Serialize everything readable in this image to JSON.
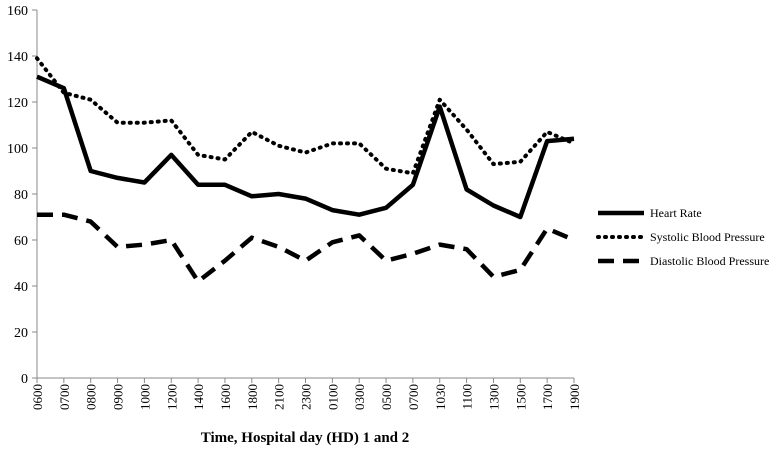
{
  "chart_data": {
    "type": "line",
    "title": "",
    "xlabel": "Time, Hospital day (HD) 1 and 2",
    "ylabel": "",
    "ylim": [
      0,
      160
    ],
    "yticks": [
      0,
      20,
      40,
      60,
      80,
      100,
      120,
      140,
      160
    ],
    "grid": false,
    "legend_position": "right",
    "categories": [
      "0600",
      "0700",
      "0800",
      "0900",
      "1000",
      "1200",
      "1400",
      "1600",
      "1800",
      "2100",
      "2300",
      "0100",
      "0300",
      "0500",
      "0700",
      "1030",
      "1100",
      "1300",
      "1500",
      "1700",
      "1900"
    ],
    "series": [
      {
        "name": "Heart Rate",
        "style": "solid",
        "color": "#000000",
        "values": [
          131,
          126,
          90,
          87,
          85,
          97,
          84,
          84,
          79,
          80,
          78,
          73,
          71,
          74,
          84,
          118,
          82,
          75,
          70,
          103,
          104
        ]
      },
      {
        "name": "Systolic Blood Pressure",
        "style": "dotted",
        "color": "#000000",
        "values": [
          139,
          124,
          121,
          111,
          111,
          112,
          97,
          95,
          107,
          101,
          98,
          102,
          102,
          91,
          89,
          121,
          108,
          93,
          94,
          107,
          102
        ]
      },
      {
        "name": "Diastolic Blood Pressure",
        "style": "dashed",
        "color": "#000000",
        "values": [
          71,
          71,
          68,
          57,
          58,
          60,
          42,
          51,
          61,
          57,
          51,
          59,
          62,
          51,
          54,
          58,
          56,
          44,
          47,
          65,
          60
        ]
      }
    ]
  }
}
